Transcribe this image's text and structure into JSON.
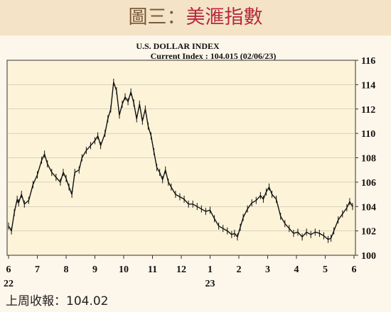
{
  "header": {
    "prefix": "圖三：",
    "title": "美滙指數"
  },
  "footnote": "上周收報：104.02",
  "chart_data": {
    "type": "line",
    "title": "U.S. DOLLAR INDEX",
    "subtitle": "Current Index : 104.015 (02/06/23)",
    "ylim": [
      100,
      116
    ],
    "yticks": [
      100,
      102,
      104,
      106,
      108,
      110,
      112,
      114,
      116
    ],
    "grid": true,
    "xlabels": [
      {
        "month": "6",
        "year": "22",
        "x": 0
      },
      {
        "month": "7",
        "year": "",
        "x": 1
      },
      {
        "month": "8",
        "year": "",
        "x": 2
      },
      {
        "month": "9",
        "year": "",
        "x": 3
      },
      {
        "month": "10",
        "year": "",
        "x": 4
      },
      {
        "month": "11",
        "year": "",
        "x": 5
      },
      {
        "month": "12",
        "year": "",
        "x": 6
      },
      {
        "month": "1",
        "year": "23",
        "x": 7
      },
      {
        "month": "2",
        "year": "",
        "x": 8
      },
      {
        "month": "3",
        "year": "",
        "x": 9
      },
      {
        "month": "4",
        "year": "",
        "x": 10
      },
      {
        "month": "5",
        "year": "",
        "x": 11
      },
      {
        "month": "6",
        "year": "",
        "x": 12
      }
    ],
    "series": [
      {
        "values": [
          [
            0.0,
            102.4
          ],
          [
            0.1,
            102.0
          ],
          [
            0.2,
            103.5
          ],
          [
            0.3,
            104.6
          ],
          [
            0.35,
            104.3
          ],
          [
            0.45,
            105.0
          ],
          [
            0.55,
            104.2
          ],
          [
            0.7,
            104.5
          ],
          [
            0.85,
            105.8
          ],
          [
            1.0,
            106.6
          ],
          [
            1.15,
            107.8
          ],
          [
            1.25,
            108.3
          ],
          [
            1.35,
            107.5
          ],
          [
            1.5,
            106.8
          ],
          [
            1.65,
            106.4
          ],
          [
            1.8,
            106.0
          ],
          [
            1.9,
            106.8
          ],
          [
            2.0,
            106.3
          ],
          [
            2.1,
            105.6
          ],
          [
            2.2,
            105.0
          ],
          [
            2.3,
            106.8
          ],
          [
            2.45,
            107.0
          ],
          [
            2.55,
            108.0
          ],
          [
            2.7,
            108.6
          ],
          [
            2.85,
            109.0
          ],
          [
            3.0,
            109.4
          ],
          [
            3.1,
            109.8
          ],
          [
            3.2,
            109.0
          ],
          [
            3.35,
            110.0
          ],
          [
            3.45,
            111.2
          ],
          [
            3.55,
            112.0
          ],
          [
            3.65,
            114.2
          ],
          [
            3.75,
            113.5
          ],
          [
            3.85,
            111.5
          ],
          [
            3.95,
            112.4
          ],
          [
            4.05,
            113.0
          ],
          [
            4.15,
            112.6
          ],
          [
            4.25,
            113.4
          ],
          [
            4.35,
            112.5
          ],
          [
            4.45,
            111.2
          ],
          [
            4.55,
            112.4
          ],
          [
            4.65,
            111.0
          ],
          [
            4.75,
            112.0
          ],
          [
            4.85,
            110.6
          ],
          [
            4.95,
            109.8
          ],
          [
            5.05,
            108.5
          ],
          [
            5.15,
            107.2
          ],
          [
            5.25,
            106.8
          ],
          [
            5.35,
            106.2
          ],
          [
            5.45,
            107.0
          ],
          [
            5.55,
            106.0
          ],
          [
            5.65,
            105.6
          ],
          [
            5.8,
            105.0
          ],
          [
            5.95,
            104.8
          ],
          [
            6.1,
            104.6
          ],
          [
            6.25,
            104.2
          ],
          [
            6.4,
            104.2
          ],
          [
            6.55,
            104.0
          ],
          [
            6.7,
            103.8
          ],
          [
            6.85,
            103.6
          ],
          [
            7.0,
            103.7
          ],
          [
            7.15,
            103.0
          ],
          [
            7.3,
            102.4
          ],
          [
            7.45,
            102.2
          ],
          [
            7.6,
            102.0
          ],
          [
            7.75,
            101.7
          ],
          [
            7.85,
            101.8
          ],
          [
            7.95,
            101.5
          ],
          [
            8.05,
            102.3
          ],
          [
            8.15,
            103.1
          ],
          [
            8.3,
            103.8
          ],
          [
            8.45,
            104.3
          ],
          [
            8.6,
            104.5
          ],
          [
            8.75,
            104.9
          ],
          [
            8.85,
            104.6
          ],
          [
            8.95,
            105.2
          ],
          [
            9.05,
            105.6
          ],
          [
            9.15,
            105.0
          ],
          [
            9.3,
            104.6
          ],
          [
            9.45,
            103.2
          ],
          [
            9.6,
            102.6
          ],
          [
            9.75,
            102.2
          ],
          [
            9.9,
            101.8
          ],
          [
            10.05,
            101.9
          ],
          [
            10.2,
            101.5
          ],
          [
            10.35,
            101.9
          ],
          [
            10.5,
            101.7
          ],
          [
            10.65,
            101.9
          ],
          [
            10.8,
            101.8
          ],
          [
            10.95,
            101.6
          ],
          [
            11.1,
            101.3
          ],
          [
            11.2,
            101.4
          ],
          [
            11.3,
            102.0
          ],
          [
            11.45,
            102.9
          ],
          [
            11.6,
            103.4
          ],
          [
            11.75,
            103.9
          ],
          [
            11.85,
            104.4
          ],
          [
            11.95,
            104.0
          ]
        ]
      }
    ]
  }
}
